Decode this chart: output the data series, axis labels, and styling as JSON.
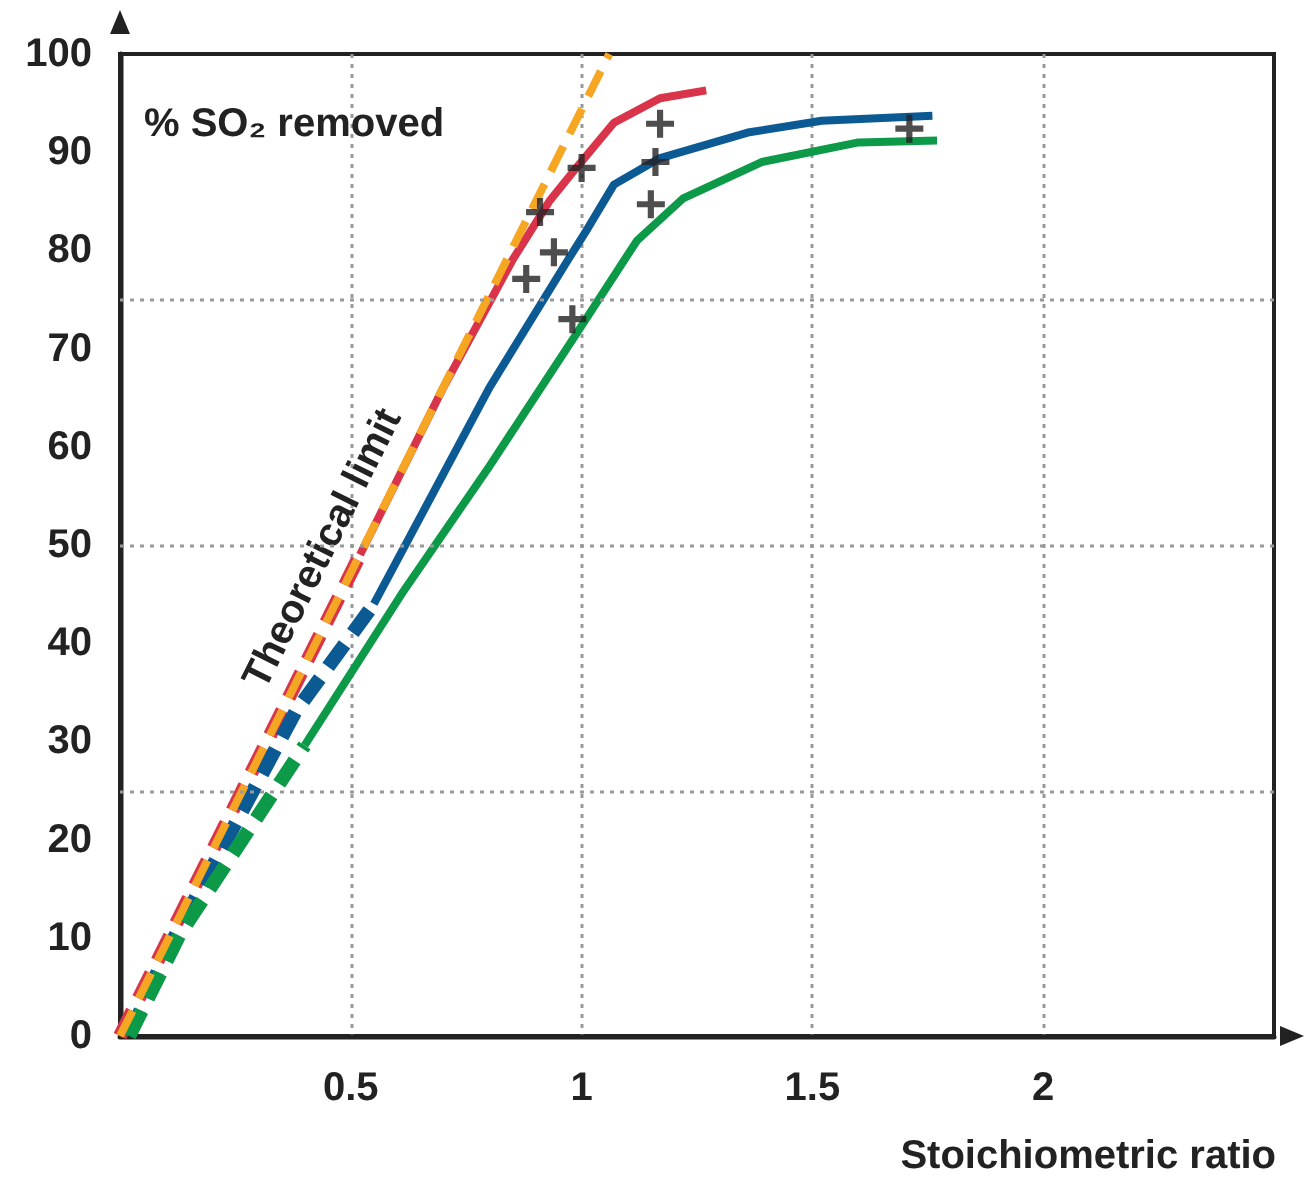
{
  "chart_data": {
    "type": "line",
    "ylabel": "% SO₂ removed",
    "xlabel": "Stoichiometric ratio",
    "xlim": [
      0,
      2.5
    ],
    "xticks": [
      0.5,
      1,
      1.5,
      2
    ],
    "ylim": [
      0,
      100
    ],
    "yticks": [
      0,
      10,
      20,
      30,
      40,
      50,
      60,
      70,
      80,
      90,
      100
    ],
    "grid": "x",
    "marker": "none",
    "ref_lines": [
      {
        "axis": "y",
        "value": 25,
        "color": "#999999",
        "line_style": "dotted"
      },
      {
        "axis": "y",
        "value": 50,
        "color": "#999999",
        "line_style": "dotted"
      },
      {
        "axis": "y",
        "value": 75,
        "color": "#999999",
        "line_style": "dotted"
      }
    ],
    "series": [
      {
        "color": "#d9344a",
        "line_style": "dashed",
        "x": [
          0,
          0.52
        ],
        "values": [
          0,
          49
        ]
      },
      {
        "color": "#d9344a",
        "line_style": "solid",
        "x": [
          0.52,
          0.7,
          0.85,
          0.93,
          0.99,
          1.07,
          1.17,
          1.27
        ],
        "values": [
          49,
          66,
          79,
          85,
          88.5,
          93,
          95.5,
          96.3
        ]
      },
      {
        "color": "#0b5a94",
        "line_style": "dashed",
        "x": [
          0.02,
          0.1,
          0.38,
          0.55
        ],
        "values": [
          0,
          8.5,
          33,
          44
        ]
      },
      {
        "color": "#0b5a94",
        "line_style": "solid",
        "x": [
          0.55,
          0.8,
          0.97,
          1.01,
          1.07,
          1.17,
          1.36,
          1.52,
          1.76
        ],
        "values": [
          44,
          66,
          79,
          82,
          86.7,
          89.4,
          92,
          93.2,
          93.7
        ]
      },
      {
        "color": "#0c9a48",
        "line_style": "dashed",
        "x": [
          0.02,
          0.13,
          0.4
        ],
        "values": [
          0,
          10.4,
          29.6
        ]
      },
      {
        "color": "#0c9a48",
        "line_style": "solid",
        "x": [
          0.4,
          0.61,
          0.8,
          0.99,
          1.12,
          1.22,
          1.39,
          1.6,
          1.77
        ],
        "values": [
          29.6,
          45,
          58,
          71.6,
          81,
          85.3,
          89,
          91,
          91.2
        ]
      },
      {
        "name": "Theoretical limit",
        "color": "#f5a623",
        "line_style": "dashed",
        "x": [
          0,
          1.06
        ],
        "values": [
          0,
          100
        ]
      },
      {
        "type": "scatter",
        "marker": "cross",
        "color": "#222222",
        "x": [
          1.17,
          1.0,
          1.16,
          0.91,
          1.15,
          0.94,
          0.88,
          0.98,
          1.71
        ],
        "values": [
          92.9,
          88.4,
          89,
          83.9,
          84.7,
          79.8,
          77.1,
          73,
          92.4
        ]
      }
    ]
  }
}
